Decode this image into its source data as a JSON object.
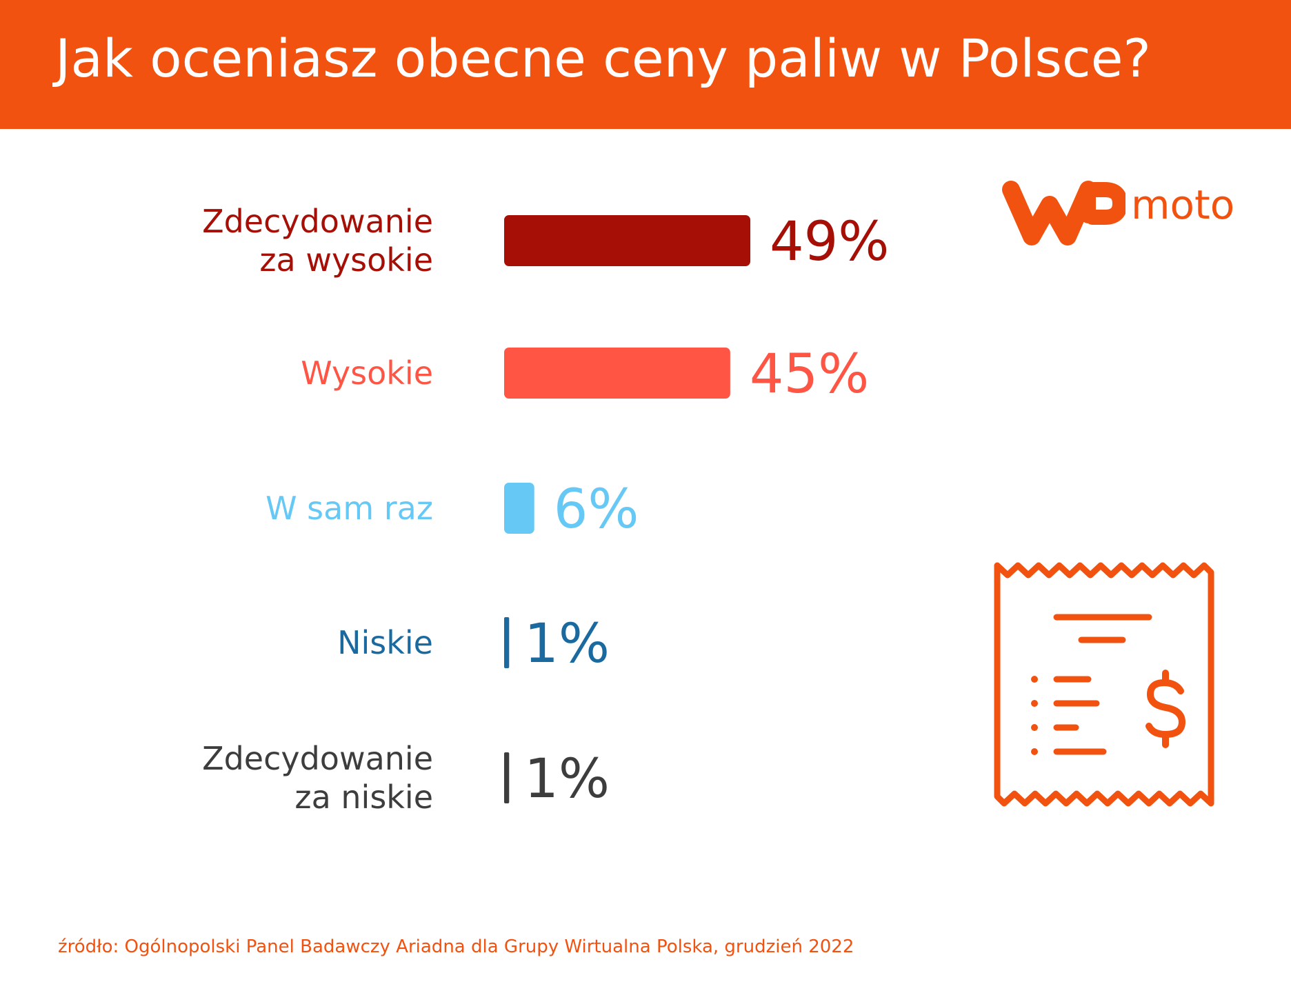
{
  "title": "Jak oceniasz obecne ceny paliw w Polsce?",
  "logo": {
    "brand_mark": "WP",
    "suffix": "moto",
    "color": "#f2520f"
  },
  "source": "źródło: Ogólnopolski Panel Badawczy Ariadna dla Grupy Wirtualna Polska, grudzień 2022",
  "colors": {
    "header": "#f2520f",
    "accent": "#f2520f"
  },
  "icon": "receipt-dollar-icon",
  "chart_data": {
    "type": "bar",
    "orientation": "horizontal",
    "title": "Jak oceniasz obecne ceny paliw w Polsce?",
    "categories": [
      [
        "Zdecydowanie",
        "za wysokie"
      ],
      [
        "Wysokie"
      ],
      [
        "W sam raz"
      ],
      [
        "Niskie"
      ],
      [
        "Zdecydowanie",
        "za niskie"
      ]
    ],
    "values": [
      49,
      45,
      6,
      1,
      1
    ],
    "value_labels": [
      "49%",
      "45%",
      "6%",
      "1%",
      "1%"
    ],
    "unit": "%",
    "colors": [
      "#a50f05",
      "#ff5545",
      "#66c8f5",
      "#1a6aa0",
      "#3d3d3d"
    ],
    "grid": false,
    "legend": "none"
  }
}
